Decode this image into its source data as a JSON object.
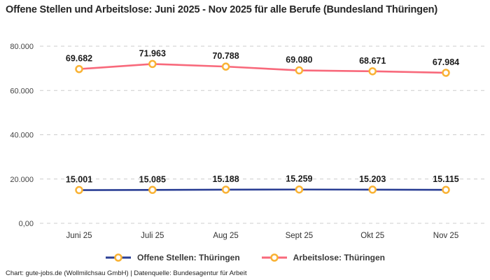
{
  "chart_data": {
    "type": "line",
    "title": "Offene Stellen und Arbeitslose: Juni 2025 - Nov 2025 für alle Berufe (Bundesland Thüringen)",
    "categories": [
      "Juni 25",
      "Juli 25",
      "Aug 25",
      "Sept 25",
      "Okt 25",
      "Nov 25"
    ],
    "series": [
      {
        "name": "Offene Stellen: Thüringen",
        "values": [
          15001,
          15085,
          15188,
          15259,
          15203,
          15115
        ],
        "value_labels": [
          "15.001",
          "15.085",
          "15.188",
          "15.259",
          "15.203",
          "15.115"
        ],
        "color": "#2b3f95"
      },
      {
        "name": "Arbeitslose: Thüringen",
        "values": [
          69682,
          71963,
          70788,
          69080,
          68671,
          67984
        ],
        "value_labels": [
          "69.682",
          "71.963",
          "70.788",
          "69.080",
          "68.671",
          "67.984"
        ],
        "color": "#f8697b"
      }
    ],
    "marker": {
      "stroke": "#f9b234",
      "fill": "#ffffff"
    },
    "ylim": [
      0,
      80000
    ],
    "y_ticks": [
      {
        "value": 80000,
        "label": "80.000"
      },
      {
        "value": 60000,
        "label": "60.000"
      },
      {
        "value": 40000,
        "label": "40.000"
      },
      {
        "value": 20000,
        "label": "20.000"
      },
      {
        "value": 0,
        "label": "0,00"
      }
    ],
    "grid": "horizontal dashed",
    "grid_color": "#cccccc",
    "label_color": "#1a1a1a",
    "tick_color": "#444444",
    "legend_position": "bottom"
  },
  "footer": {
    "text": "Chart: gute-jobs.de (Wollmilchsau GmbH) | Datenquelle: Bundesagentur für Arbeit"
  }
}
